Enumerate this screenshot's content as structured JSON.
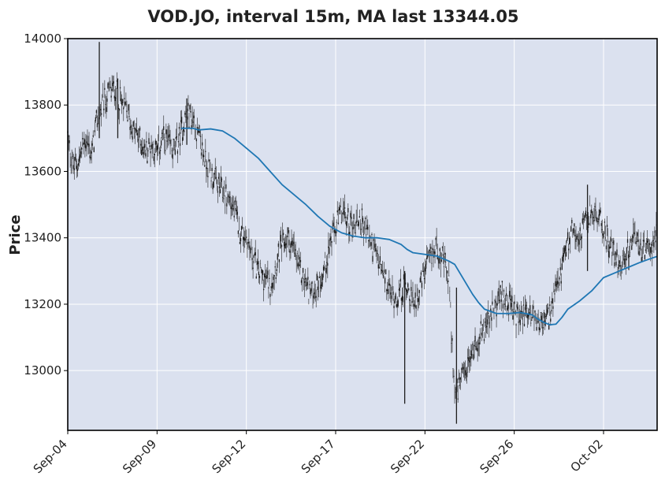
{
  "chart_data": {
    "type": "candlestick",
    "title": "VOD.JO, interval 15m, MA last 13344.05",
    "ylabel": "Price",
    "xlabel": "",
    "ylim": [
      12820,
      14000
    ],
    "yticks": [
      13000,
      13200,
      13400,
      13600,
      13800,
      14000
    ],
    "xticks": [
      "Sep-04",
      "Sep-09",
      "Sep-12",
      "Sep-17",
      "Sep-22",
      "Sep-26",
      "Oct-02"
    ],
    "xtick_positions": [
      0,
      15,
      30,
      45,
      60,
      75,
      90
    ],
    "x_range": [
      0,
      99
    ],
    "grid": true,
    "colors": {
      "plot_background": "#dbe1ef",
      "grid": "#ffffff",
      "candles": "#1f1f1f",
      "moving_average": "#1f77b4",
      "frame": "#000000"
    },
    "price_path": [
      [
        0,
        13700
      ],
      [
        1,
        13610
      ],
      [
        2,
        13640
      ],
      [
        3,
        13700
      ],
      [
        4,
        13650
      ],
      [
        5,
        13760
      ],
      [
        6,
        13800
      ],
      [
        7,
        13840
      ],
      [
        8,
        13850
      ],
      [
        9,
        13800
      ],
      [
        10,
        13780
      ],
      [
        11,
        13720
      ],
      [
        12,
        13700
      ],
      [
        13,
        13660
      ],
      [
        14,
        13680
      ],
      [
        15,
        13660
      ],
      [
        16,
        13700
      ],
      [
        17,
        13680
      ],
      [
        18,
        13660
      ],
      [
        19,
        13720
      ],
      [
        20,
        13780
      ],
      [
        21,
        13760
      ],
      [
        22,
        13700
      ],
      [
        23,
        13640
      ],
      [
        24,
        13600
      ],
      [
        25,
        13560
      ],
      [
        26,
        13540
      ],
      [
        27,
        13520
      ],
      [
        28,
        13480
      ],
      [
        29,
        13420
      ],
      [
        30,
        13400
      ],
      [
        31,
        13350
      ],
      [
        32,
        13300
      ],
      [
        33,
        13280
      ],
      [
        34,
        13260
      ],
      [
        35,
        13320
      ],
      [
        36,
        13380
      ],
      [
        37,
        13400
      ],
      [
        38,
        13360
      ],
      [
        39,
        13300
      ],
      [
        40,
        13260
      ],
      [
        41,
        13230
      ],
      [
        42,
        13260
      ],
      [
        43,
        13300
      ],
      [
        44,
        13380
      ],
      [
        45,
        13430
      ],
      [
        46,
        13480
      ],
      [
        47,
        13450
      ],
      [
        48,
        13440
      ],
      [
        49,
        13460
      ],
      [
        50,
        13430
      ],
      [
        51,
        13380
      ],
      [
        52,
        13340
      ],
      [
        53,
        13280
      ],
      [
        54,
        13240
      ],
      [
        55,
        13220
      ],
      [
        56,
        13240
      ],
      [
        57,
        13260
      ],
      [
        58,
        13200
      ],
      [
        59,
        13240
      ],
      [
        60,
        13300
      ],
      [
        61,
        13340
      ],
      [
        62,
        13380
      ],
      [
        63,
        13330
      ],
      [
        64,
        13280
      ],
      [
        65,
        12920
      ],
      [
        66,
        12960
      ],
      [
        67,
        13000
      ],
      [
        68,
        13060
      ],
      [
        69,
        13100
      ],
      [
        70,
        13130
      ],
      [
        71,
        13160
      ],
      [
        72,
        13200
      ],
      [
        73,
        13230
      ],
      [
        74,
        13210
      ],
      [
        75,
        13170
      ],
      [
        76,
        13160
      ],
      [
        77,
        13180
      ],
      [
        78,
        13170
      ],
      [
        79,
        13150
      ],
      [
        80,
        13140
      ],
      [
        81,
        13170
      ],
      [
        82,
        13230
      ],
      [
        83,
        13300
      ],
      [
        84,
        13380
      ],
      [
        85,
        13430
      ],
      [
        86,
        13400
      ],
      [
        87,
        13450
      ],
      [
        88,
        13480
      ],
      [
        89,
        13460
      ],
      [
        90,
        13430
      ],
      [
        91,
        13380
      ],
      [
        92,
        13340
      ],
      [
        93,
        13320
      ],
      [
        94,
        13360
      ],
      [
        95,
        13400
      ],
      [
        96,
        13380
      ],
      [
        97,
        13350
      ],
      [
        98,
        13380
      ],
      [
        99,
        13420
      ]
    ],
    "spikes": [
      {
        "x": 5.3,
        "high": 13990,
        "low": 13700
      },
      {
        "x": 8.4,
        "high": 13880,
        "low": 13700
      },
      {
        "x": 20.0,
        "high": 13820,
        "low": 13680
      },
      {
        "x": 56.6,
        "high": 13300,
        "low": 12900
      },
      {
        "x": 65.3,
        "high": 13250,
        "low": 12840
      },
      {
        "x": 87.3,
        "high": 13560,
        "low": 13300
      }
    ],
    "moving_average": [
      [
        19,
        13730
      ],
      [
        21,
        13730
      ],
      [
        22,
        13725
      ],
      [
        24,
        13728
      ],
      [
        26,
        13722
      ],
      [
        28,
        13700
      ],
      [
        30,
        13670
      ],
      [
        32,
        13640
      ],
      [
        34,
        13600
      ],
      [
        36,
        13560
      ],
      [
        38,
        13530
      ],
      [
        40,
        13500
      ],
      [
        42,
        13465
      ],
      [
        44,
        13435
      ],
      [
        46,
        13415
      ],
      [
        48,
        13405
      ],
      [
        50,
        13400
      ],
      [
        52,
        13400
      ],
      [
        54,
        13395
      ],
      [
        56,
        13380
      ],
      [
        57,
        13365
      ],
      [
        58,
        13355
      ],
      [
        60,
        13350
      ],
      [
        62,
        13345
      ],
      [
        64,
        13330
      ],
      [
        65,
        13320
      ],
      [
        66,
        13290
      ],
      [
        67,
        13260
      ],
      [
        68,
        13230
      ],
      [
        69,
        13205
      ],
      [
        70,
        13185
      ],
      [
        72,
        13172
      ],
      [
        74,
        13172
      ],
      [
        76,
        13175
      ],
      [
        78,
        13168
      ],
      [
        79,
        13155
      ],
      [
        80,
        13145
      ],
      [
        81,
        13138
      ],
      [
        82,
        13140
      ],
      [
        83,
        13160
      ],
      [
        84,
        13185
      ],
      [
        86,
        13210
      ],
      [
        88,
        13240
      ],
      [
        90,
        13280
      ],
      [
        92,
        13295
      ],
      [
        94,
        13310
      ],
      [
        96,
        13325
      ],
      [
        98,
        13338
      ],
      [
        99,
        13344
      ]
    ]
  }
}
